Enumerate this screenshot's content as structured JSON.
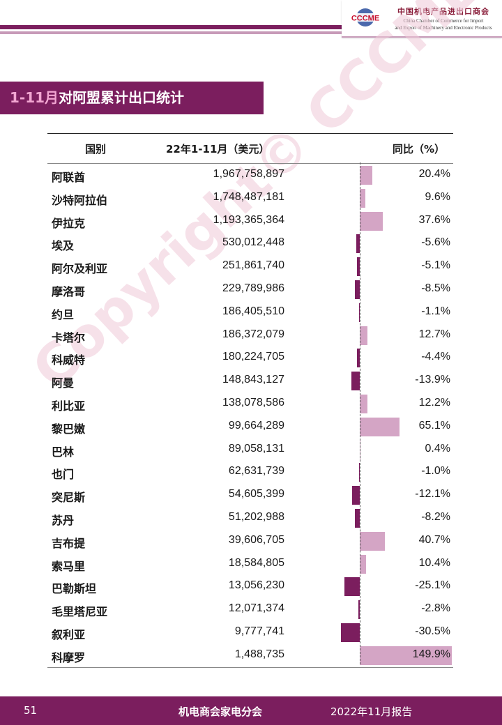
{
  "header": {
    "logo_mark": "CCCME",
    "org_cn": "中国机电产品进出口商会",
    "org_en_line1": "China Chamber of Commerce for Import",
    "org_en_line2": "and Export of Machinery and Electronic Products"
  },
  "section_title": {
    "accent": "1-11月",
    "rest": "对阿盟累计出口统计"
  },
  "watermark": "Copyright© CCCME",
  "colors": {
    "primary": "#7b1e5e",
    "positive_bar": "#d4a5c5",
    "negative_bar": "#7b1e5e"
  },
  "chart_data": {
    "type": "table",
    "columns": [
      "国别",
      "22年1-11月（美元）",
      "同比（%）"
    ],
    "rows": [
      {
        "country": "阿联酋",
        "value": "1,967,758,897",
        "yoy": "20.4%",
        "yoy_num": 20.4
      },
      {
        "country": "沙特阿拉伯",
        "value": "1,748,487,181",
        "yoy": "9.6%",
        "yoy_num": 9.6
      },
      {
        "country": "伊拉克",
        "value": "1,193,365,364",
        "yoy": "37.6%",
        "yoy_num": 37.6
      },
      {
        "country": "埃及",
        "value": "530,012,448",
        "yoy": "-5.6%",
        "yoy_num": -5.6
      },
      {
        "country": "阿尔及利亚",
        "value": "251,861,740",
        "yoy": "-5.1%",
        "yoy_num": -5.1
      },
      {
        "country": "摩洛哥",
        "value": "229,789,986",
        "yoy": "-8.5%",
        "yoy_num": -8.5
      },
      {
        "country": "约旦",
        "value": "186,405,510",
        "yoy": "-1.1%",
        "yoy_num": -1.1
      },
      {
        "country": "卡塔尔",
        "value": "186,372,079",
        "yoy": "12.7%",
        "yoy_num": 12.7
      },
      {
        "country": "科威特",
        "value": "180,224,705",
        "yoy": "-4.4%",
        "yoy_num": -4.4
      },
      {
        "country": "阿曼",
        "value": "148,843,127",
        "yoy": "-13.9%",
        "yoy_num": -13.9
      },
      {
        "country": "利比亚",
        "value": "138,078,586",
        "yoy": "12.2%",
        "yoy_num": 12.2
      },
      {
        "country": "黎巴嫩",
        "value": "99,664,289",
        "yoy": "65.1%",
        "yoy_num": 65.1
      },
      {
        "country": "巴林",
        "value": "89,058,131",
        "yoy": "0.4%",
        "yoy_num": 0.4
      },
      {
        "country": "也门",
        "value": "62,631,739",
        "yoy": "-1.0%",
        "yoy_num": -1.0
      },
      {
        "country": "突尼斯",
        "value": "54,605,399",
        "yoy": "-12.1%",
        "yoy_num": -12.1
      },
      {
        "country": "苏丹",
        "value": "51,202,988",
        "yoy": "-8.2%",
        "yoy_num": -8.2
      },
      {
        "country": "吉布提",
        "value": "39,606,705",
        "yoy": "40.7%",
        "yoy_num": 40.7
      },
      {
        "country": "索马里",
        "value": "18,584,805",
        "yoy": "10.4%",
        "yoy_num": 10.4
      },
      {
        "country": "巴勒斯坦",
        "value": "13,056,230",
        "yoy": "-25.1%",
        "yoy_num": -25.1
      },
      {
        "country": "毛里塔尼亚",
        "value": "12,071,374",
        "yoy": "-2.8%",
        "yoy_num": -2.8
      },
      {
        "country": "叙利亚",
        "value": "9,777,741",
        "yoy": "-30.5%",
        "yoy_num": -30.5
      },
      {
        "country": "科摩罗",
        "value": "1,488,735",
        "yoy": "149.9%",
        "yoy_num": 149.9
      }
    ]
  },
  "footer": {
    "page_number": "51",
    "org": "机电商会家电分会",
    "date": "2022年11月报告"
  }
}
